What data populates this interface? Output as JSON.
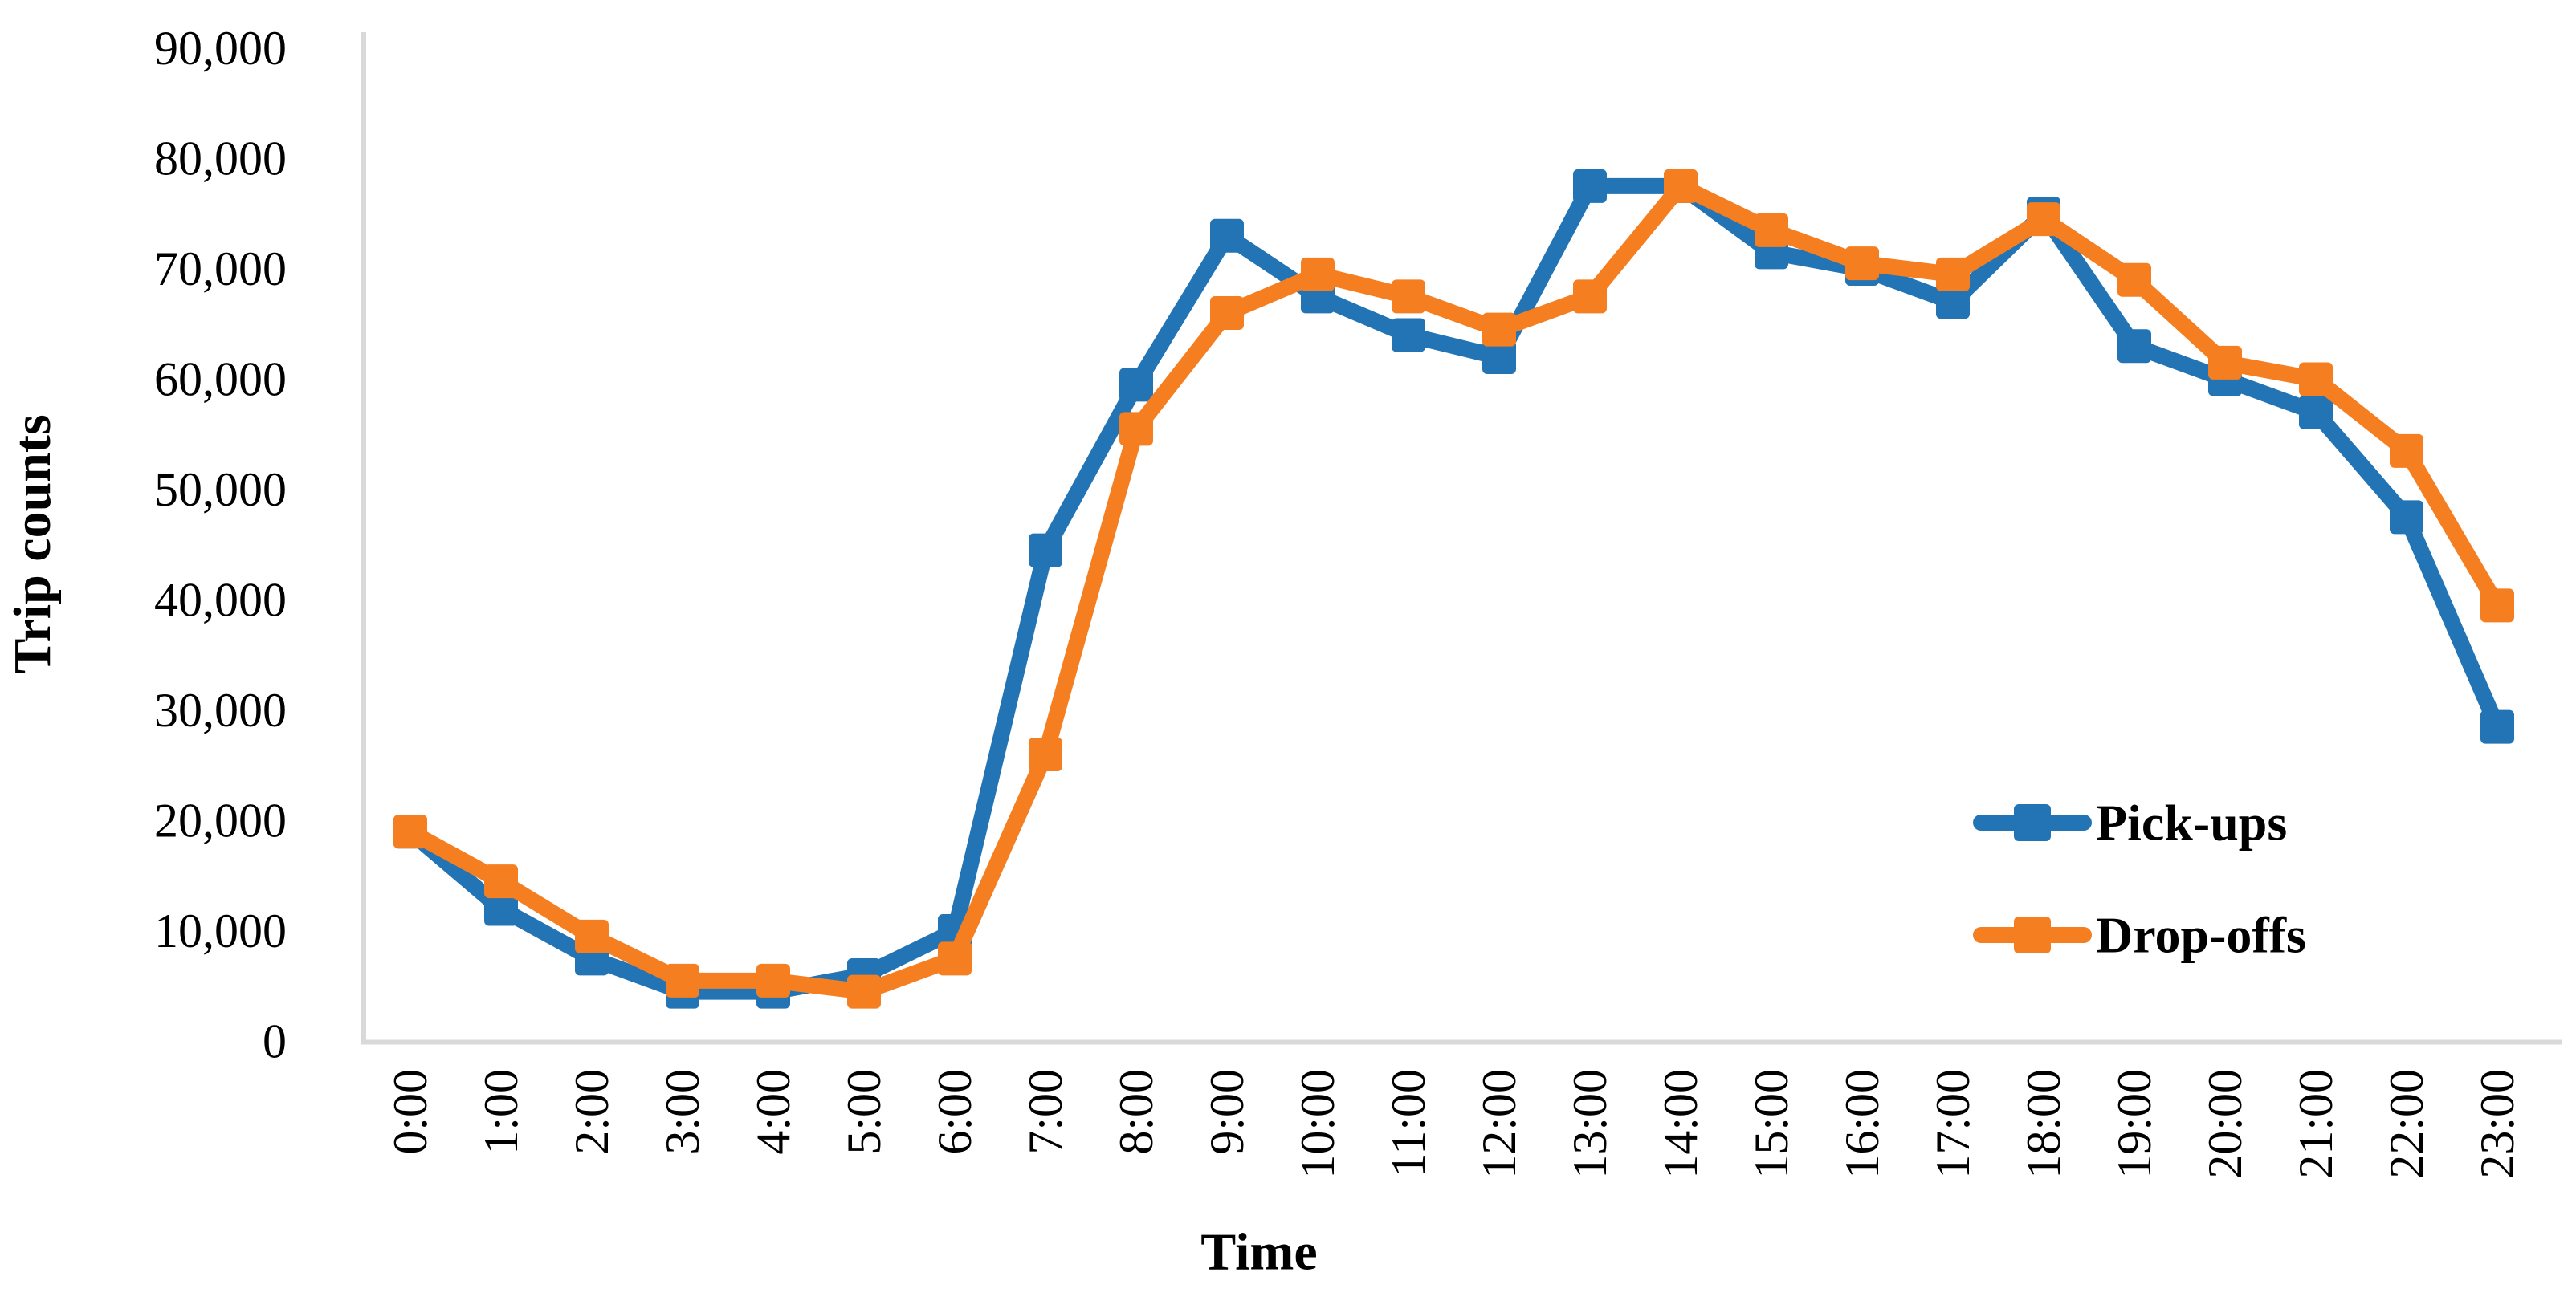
{
  "chart_data": {
    "type": "line",
    "xlabel": "Time",
    "ylabel": "Trip counts",
    "categories": [
      "0:00",
      "1:00",
      "2:00",
      "3:00",
      "4:00",
      "5:00",
      "6:00",
      "7:00",
      "8:00",
      "9:00",
      "10:00",
      "11:00",
      "12:00",
      "13:00",
      "14:00",
      "15:00",
      "16:00",
      "17:00",
      "18:00",
      "19:00",
      "20:00",
      "21:00",
      "22:00",
      "23:00"
    ],
    "series": [
      {
        "name": "Pick-ups",
        "color": "#2274B5",
        "marker": "square",
        "values": [
          19000,
          12000,
          7500,
          4500,
          4500,
          6000,
          10000,
          44500,
          59500,
          73000,
          67500,
          64000,
          62000,
          77500,
          77500,
          71500,
          70000,
          67000,
          75000,
          63000,
          60000,
          57000,
          47500,
          28500
        ]
      },
      {
        "name": "Drop-offs",
        "color": "#F57E20",
        "marker": "square",
        "values": [
          19000,
          14500,
          9500,
          5500,
          5500,
          4500,
          7500,
          26000,
          55500,
          66000,
          69500,
          67500,
          64500,
          67500,
          77500,
          73500,
          70500,
          69500,
          74500,
          69000,
          61500,
          60000,
          53500,
          39500
        ]
      }
    ],
    "ylim": [
      0,
      90000
    ],
    "y_ticks": {
      "values": [
        0,
        10000,
        20000,
        30000,
        40000,
        50000,
        60000,
        70000,
        80000,
        90000
      ],
      "labels": [
        "0",
        "10,000",
        "20,000",
        "30,000",
        "40,000",
        "50,000",
        "60,000",
        "70,000",
        "80,000",
        "90,000"
      ]
    },
    "grid": "off",
    "legend_position": "right-center",
    "axis_color": "#D9D9D9",
    "text_color": "#000000",
    "background": "#FFFFFF"
  }
}
